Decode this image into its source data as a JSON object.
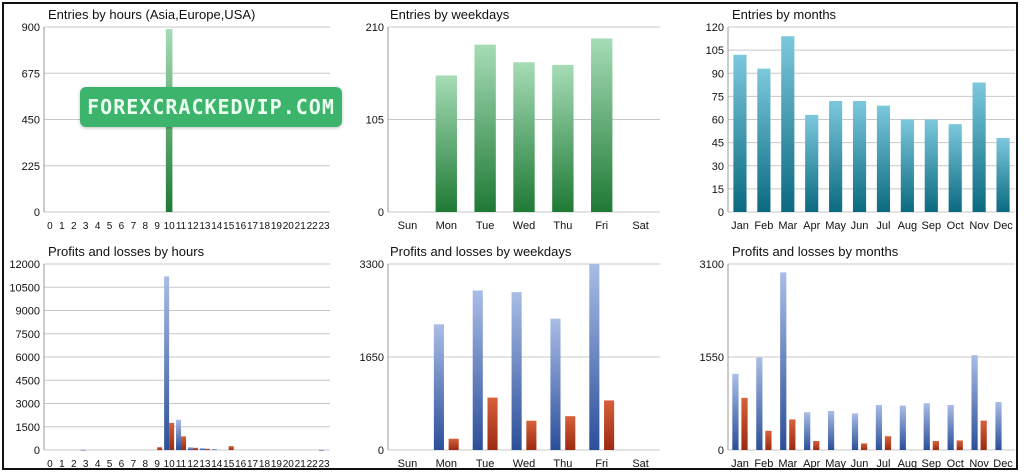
{
  "watermark": {
    "text": "FOREXCRACKEDVIP.COM"
  },
  "colors": {
    "green_top": "#a6dcb6",
    "green_bottom": "#1f7a35",
    "teal_top": "#7cc8dc",
    "teal_bottom": "#0a6a80",
    "blue_top": "#a9bde6",
    "blue_bottom": "#2c4f9a",
    "red_top": "#d6613a",
    "red_bottom": "#9c2a12",
    "grid": "#c8c8c8"
  },
  "chart_data": [
    {
      "type": "bar",
      "title": "Entries by hours (Asia,Europe,USA)",
      "categories": [
        "0",
        "1",
        "2",
        "3",
        "4",
        "5",
        "6",
        "7",
        "8",
        "9",
        "10",
        "11",
        "12",
        "13",
        "14",
        "15",
        "16",
        "17",
        "18",
        "19",
        "20",
        "21",
        "22",
        "23"
      ],
      "series": [
        {
          "name": "Entries",
          "values": [
            0,
            0,
            0,
            0,
            0,
            0,
            0,
            0,
            0,
            0,
            890,
            0,
            0,
            0,
            0,
            0,
            0,
            0,
            0,
            0,
            0,
            0,
            0,
            0
          ]
        }
      ],
      "yticks": [
        "0",
        "225",
        "450",
        "675",
        "900"
      ],
      "ylim": [
        0,
        900
      ],
      "color": "green"
    },
    {
      "type": "bar",
      "title": "Entries by weekdays",
      "categories": [
        "Sun",
        "Mon",
        "Tue",
        "Wed",
        "Thu",
        "Fri",
        "Sat"
      ],
      "series": [
        {
          "name": "Entries",
          "values": [
            0,
            155,
            190,
            170,
            167,
            197,
            0
          ]
        }
      ],
      "yticks": [
        "0",
        "105",
        "210"
      ],
      "ylim": [
        0,
        210
      ],
      "color": "green"
    },
    {
      "type": "bar",
      "title": "Entries by months",
      "categories": [
        "Jan",
        "Feb",
        "Mar",
        "Apr",
        "May",
        "Jun",
        "Jul",
        "Aug",
        "Sep",
        "Oct",
        "Nov",
        "Dec"
      ],
      "series": [
        {
          "name": "Entries",
          "values": [
            102,
            93,
            114,
            63,
            72,
            72,
            69,
            60,
            60,
            57,
            84,
            48
          ]
        }
      ],
      "yticks": [
        "0",
        "15",
        "30",
        "45",
        "60",
        "75",
        "90",
        "105",
        "120"
      ],
      "ylim": [
        0,
        120
      ],
      "color": "teal"
    },
    {
      "type": "bar",
      "title": "Profits and losses by hours",
      "categories": [
        "0",
        "1",
        "2",
        "3",
        "4",
        "5",
        "6",
        "7",
        "8",
        "9",
        "10",
        "11",
        "12",
        "13",
        "14",
        "15",
        "16",
        "17",
        "18",
        "19",
        "20",
        "21",
        "22",
        "23"
      ],
      "series": [
        {
          "name": "Profits",
          "values": [
            0,
            0,
            0,
            30,
            0,
            0,
            0,
            0,
            0,
            0,
            11200,
            1950,
            180,
            120,
            60,
            0,
            0,
            0,
            0,
            0,
            0,
            0,
            0,
            20
          ]
        },
        {
          "name": "Losses",
          "values": [
            0,
            0,
            0,
            0,
            0,
            0,
            0,
            0,
            0,
            180,
            1750,
            880,
            140,
            80,
            0,
            250,
            0,
            0,
            0,
            0,
            0,
            0,
            0,
            0
          ]
        }
      ],
      "yticks": [
        "0",
        "1500",
        "3000",
        "4500",
        "6000",
        "7500",
        "9000",
        "10500",
        "12000"
      ],
      "ylim": [
        0,
        12000
      ],
      "color": "bluered"
    },
    {
      "type": "bar",
      "title": "Profits and losses by weekdays",
      "categories": [
        "Sun",
        "Mon",
        "Tue",
        "Wed",
        "Thu",
        "Fri",
        "Sat"
      ],
      "series": [
        {
          "name": "Profits",
          "values": [
            0,
            2230,
            2830,
            2800,
            2330,
            3300,
            0
          ]
        },
        {
          "name": "Losses",
          "values": [
            0,
            200,
            930,
            520,
            600,
            880,
            0
          ]
        }
      ],
      "yticks": [
        "0",
        "1650",
        "3300"
      ],
      "ylim": [
        0,
        3300
      ],
      "color": "bluered"
    },
    {
      "type": "bar",
      "title": "Profits and losses by months",
      "categories": [
        "Jan",
        "Feb",
        "Mar",
        "Apr",
        "May",
        "Jun",
        "Jul",
        "Aug",
        "Sep",
        "Oct",
        "Nov",
        "Dec"
      ],
      "series": [
        {
          "name": "Profits",
          "values": [
            1270,
            1540,
            2960,
            630,
            650,
            610,
            750,
            740,
            780,
            750,
            1580,
            800
          ]
        },
        {
          "name": "Losses",
          "values": [
            870,
            320,
            510,
            150,
            0,
            110,
            230,
            0,
            150,
            160,
            490,
            0
          ]
        }
      ],
      "yticks": [
        "0",
        "1550",
        "3100"
      ],
      "ylim": [
        0,
        3100
      ],
      "color": "bluered"
    }
  ]
}
